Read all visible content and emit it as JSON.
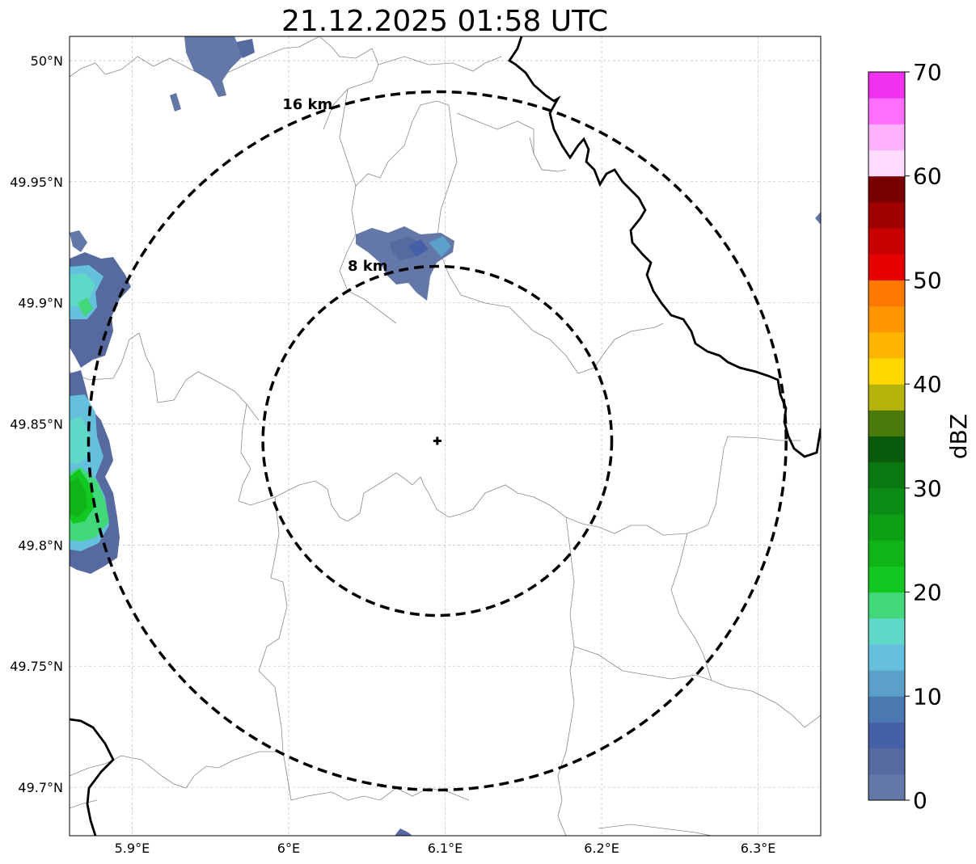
{
  "title": "21.12.2025 01:58 UTC",
  "map": {
    "lon_range": [
      5.86,
      6.34
    ],
    "lat_range": [
      49.68,
      50.01
    ],
    "center": {
      "lon": 6.095,
      "lat": 49.843
    },
    "rings": [
      {
        "label": "8 km",
        "radius_km": 8
      },
      {
        "label": "16 km",
        "radius_km": 16
      }
    ],
    "x_ticks": [
      {
        "value": 5.9,
        "label": "5.9°E"
      },
      {
        "value": 6.0,
        "label": "6°E"
      },
      {
        "value": 6.1,
        "label": "6.1°E"
      },
      {
        "value": 6.2,
        "label": "6.2°E"
      },
      {
        "value": 6.3,
        "label": "6.3°E"
      }
    ],
    "y_ticks": [
      {
        "value": 50.0,
        "label": "50°N"
      },
      {
        "value": 49.95,
        "label": "49.95°N"
      },
      {
        "value": 49.9,
        "label": "49.9°N"
      },
      {
        "value": 49.85,
        "label": "49.85°N"
      },
      {
        "value": 49.8,
        "label": "49.8°N"
      },
      {
        "value": 49.75,
        "label": "49.75°N"
      },
      {
        "value": 49.7,
        "label": "49.7°N"
      }
    ]
  },
  "colorbar": {
    "label": "dBZ",
    "min": 0,
    "max": 70,
    "tick_labels": [
      "0",
      "10",
      "20",
      "30",
      "40",
      "50",
      "60",
      "70"
    ],
    "colors": [
      "#6478a8",
      "#566aa0",
      "#4660a8",
      "#4a78b0",
      "#5aa0c8",
      "#64c0dc",
      "#60d8c8",
      "#40d878",
      "#10c820",
      "#10b418",
      "#0ea014",
      "#0c8c14",
      "#0a7810",
      "#0a5c0c",
      "#4a7a0c",
      "#b4b40a",
      "#ffd800",
      "#ffb400",
      "#ff9600",
      "#ff7800",
      "#e60000",
      "#c80000",
      "#a00000",
      "#780000",
      "#ffdcff",
      "#ffb0ff",
      "#ff6eff",
      "#f032f0"
    ]
  }
}
